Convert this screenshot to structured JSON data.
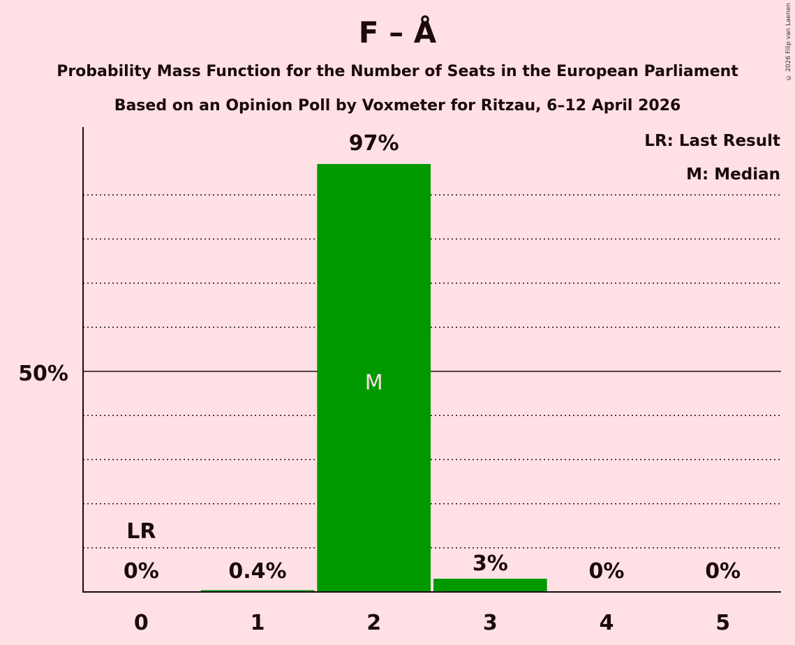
{
  "header": {
    "title": "F – Å",
    "subtitle_1": "Probability Mass Function for the Number of Seats in the European Parliament",
    "subtitle_2": "Based on an Opinion Poll by Voxmeter for Ritzau, 6–12 April 2026",
    "copyright": "© 2026 Filip van Laenen"
  },
  "legend": {
    "lr": "LR: Last Result",
    "m": "M: Median"
  },
  "colors": {
    "background": "#ffe0e5",
    "bar": "#009900",
    "text": "#1a0a0d",
    "median_label": "#ffe0e5"
  },
  "chart_data": {
    "type": "bar",
    "title": "F – Å",
    "subtitle": "Probability Mass Function for the Number of Seats in the European Parliament; Based on an Opinion Poll by Voxmeter for Ritzau, 6–12 April 2026",
    "xlabel": "",
    "ylabel": "",
    "categories": [
      "0",
      "1",
      "2",
      "3",
      "4",
      "5"
    ],
    "values": [
      0,
      0.4,
      97,
      3,
      0,
      0
    ],
    "value_labels": [
      "0%",
      "0.4%",
      "97%",
      "3%",
      "0%",
      "0%"
    ],
    "ylim": [
      0,
      100
    ],
    "y_tick_labels": [
      "50%"
    ],
    "grid": "dotted lines every 10%, solid line at 50%",
    "last_result_seat": 0,
    "last_result_label": "LR",
    "median_seat": 2,
    "median_label": "M",
    "legend_position": "top-right",
    "legend": [
      "LR: Last Result",
      "M: Median"
    ]
  }
}
